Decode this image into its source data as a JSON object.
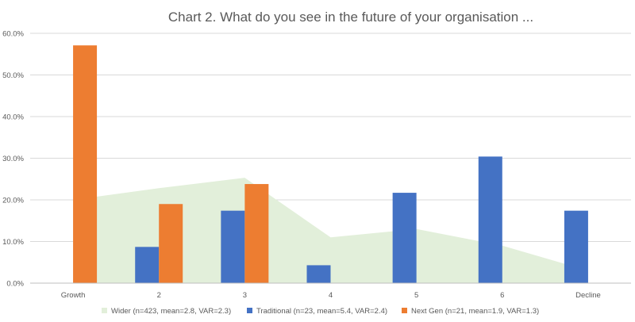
{
  "chart_data": {
    "type": "bar",
    "title": "Chart 2. What do you see in the future of your organisation ...",
    "xlabel": "",
    "ylabel": "",
    "categories": [
      "Growth",
      "2",
      "3",
      "4",
      "5",
      "6",
      "Decline"
    ],
    "ylim": [
      0,
      0.6
    ],
    "yticks": [
      0,
      0.1,
      0.2,
      0.3,
      0.4,
      0.5,
      0.6
    ],
    "ytick_labels": [
      "0.0%",
      "10.0%",
      "20.0%",
      "30.0%",
      "40.0%",
      "50.0%",
      "60.0%"
    ],
    "grid": true,
    "legend_position": "bottom",
    "series": [
      {
        "name": "Wider (n=423, mean=2.8, VAR=2.3)",
        "type": "area",
        "color": "#e2efda",
        "values": [
          0.2,
          0.228,
          0.253,
          0.11,
          0.13,
          0.09,
          0.03
        ]
      },
      {
        "name": "Traditional (n=23, mean=5.4, VAR=2.4)",
        "type": "bar",
        "color": "#4472c4",
        "values": [
          0,
          0.087,
          0.174,
          0.043,
          0.217,
          0.304,
          0.174
        ]
      },
      {
        "name": "Next Gen (n=21, mean=1.9, VAR=1.3)",
        "type": "bar",
        "color": "#ed7d31",
        "values": [
          0.571,
          0.19,
          0.238,
          0,
          0,
          0,
          0
        ]
      }
    ]
  }
}
